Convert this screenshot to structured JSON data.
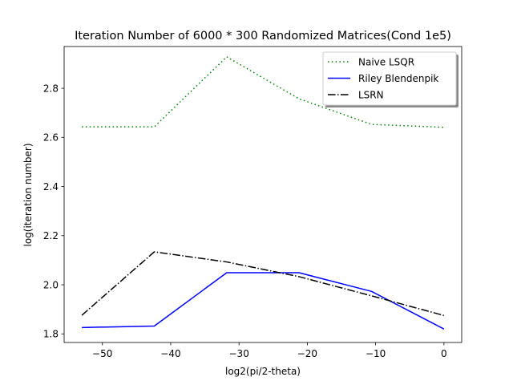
{
  "chart_data": {
    "type": "line",
    "title": "Iteration Number of 6000 * 300 Randomized Matrices(Cond 1e5)",
    "xlabel": "log2(pi/2-theta)",
    "ylabel": "log(iteration number)",
    "xlim": [
      -55.6,
      2.6
    ],
    "ylim": [
      1.765,
      2.97
    ],
    "xticks": [
      -50,
      -40,
      -30,
      -20,
      -10,
      0
    ],
    "xtick_labels": [
      "−50",
      "−40",
      "−30",
      "−20",
      "−10",
      "0"
    ],
    "yticks": [
      1.8,
      2.0,
      2.2,
      2.4,
      2.6,
      2.8
    ],
    "ytick_labels": [
      "1.8",
      "2.0",
      "2.2",
      "2.4",
      "2.6",
      "2.8"
    ],
    "x": [
      -53,
      -42.4,
      -31.8,
      -21.2,
      -10.6,
      0
    ],
    "grid": false,
    "legend_position": "upper right",
    "series": [
      {
        "name": "Naive LSQR",
        "color": "#008000",
        "dash": "dotted",
        "values": [
          2.643,
          2.643,
          2.928,
          2.757,
          2.653,
          2.641
        ]
      },
      {
        "name": "Riley Blendenpik",
        "color": "#0000ff",
        "dash": "solid",
        "values": [
          1.826,
          1.832,
          2.049,
          2.049,
          1.973,
          1.82
        ]
      },
      {
        "name": "LSRN",
        "color": "#000000",
        "dash": "dashdot",
        "values": [
          1.876,
          2.134,
          2.093,
          2.033,
          1.955,
          1.875
        ]
      }
    ]
  }
}
